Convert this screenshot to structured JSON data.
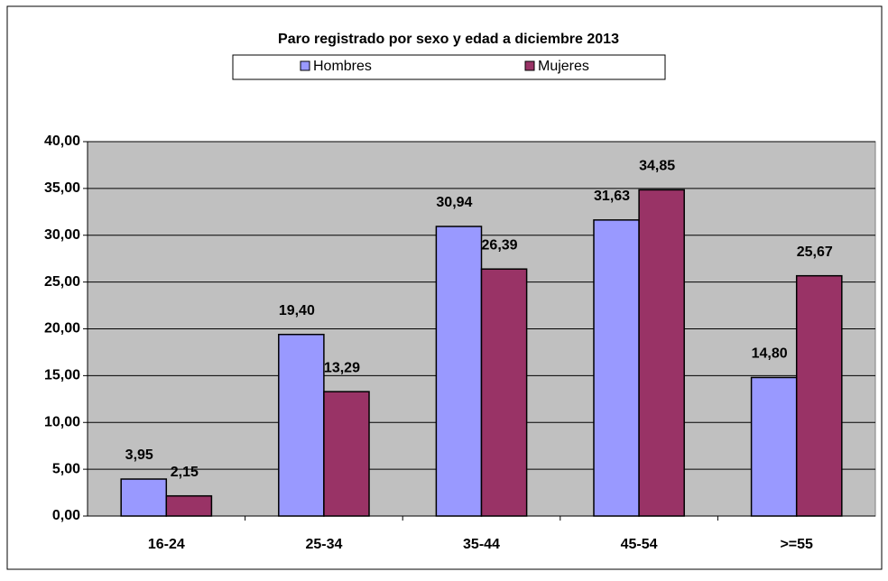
{
  "chart_data": {
    "type": "bar",
    "title": "Paro registrado por sexo y edad a diciembre 2013",
    "categories": [
      "16-24",
      "25-34",
      "35-44",
      "45-54",
      ">=55"
    ],
    "series": [
      {
        "name": "Hombres",
        "color": "#9999ff",
        "values": [
          3.95,
          19.4,
          30.94,
          31.63,
          14.8
        ],
        "value_labels": [
          "3,95",
          "19,40",
          "30,94",
          "31,63",
          "14,80"
        ]
      },
      {
        "name": "Mujeres",
        "color": "#993366",
        "values": [
          2.15,
          13.29,
          26.39,
          34.85,
          25.67
        ],
        "value_labels": [
          "2,15",
          "13,29",
          "26,39",
          "34,85",
          "25,67"
        ]
      }
    ],
    "ylim": [
      0,
      40
    ],
    "yticks": [
      {
        "value": 0,
        "label": "0,00"
      },
      {
        "value": 5,
        "label": "5,00"
      },
      {
        "value": 10,
        "label": "10,00"
      },
      {
        "value": 15,
        "label": "15,00"
      },
      {
        "value": 20,
        "label": "20,00"
      },
      {
        "value": 25,
        "label": "25,00"
      },
      {
        "value": 30,
        "label": "30,00"
      },
      {
        "value": 35,
        "label": "35,00"
      },
      {
        "value": 40,
        "label": "40,00"
      }
    ],
    "grid": true,
    "legend": "top"
  }
}
